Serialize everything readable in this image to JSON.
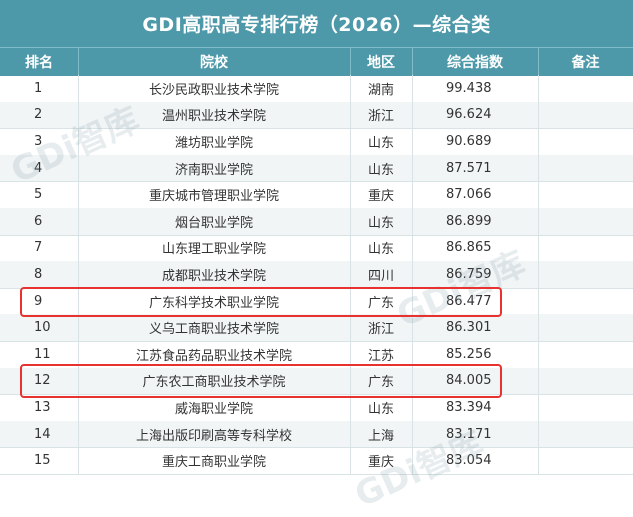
{
  "title": "GDI高职高专排行榜（2026）—综合类",
  "columns": {
    "rank": "排名",
    "school": "院校",
    "region": "地区",
    "score": "综合指数",
    "note": "备注"
  },
  "rows": [
    {
      "rank": "1",
      "school": "长沙民政职业技术学院",
      "region": "湖南",
      "score": "99.438"
    },
    {
      "rank": "2",
      "school": "温州职业技术学院",
      "region": "浙江",
      "score": "96.624"
    },
    {
      "rank": "3",
      "school": "潍坊职业学院",
      "region": "山东",
      "score": "90.689"
    },
    {
      "rank": "4",
      "school": "济南职业学院",
      "region": "山东",
      "score": "87.571"
    },
    {
      "rank": "5",
      "school": "重庆城市管理职业学院",
      "region": "重庆",
      "score": "87.066"
    },
    {
      "rank": "6",
      "school": "烟台职业学院",
      "region": "山东",
      "score": "86.899"
    },
    {
      "rank": "7",
      "school": "山东理工职业学院",
      "region": "山东",
      "score": "86.865"
    },
    {
      "rank": "8",
      "school": "成都职业技术学院",
      "region": "四川",
      "score": "86.759"
    },
    {
      "rank": "9",
      "school": "广东科学技术职业学院",
      "region": "广东",
      "score": "86.477"
    },
    {
      "rank": "10",
      "school": "义乌工商职业技术学院",
      "region": "浙江",
      "score": "86.301"
    },
    {
      "rank": "11",
      "school": "江苏食品药品职业技术学院",
      "region": "江苏",
      "score": "85.256"
    },
    {
      "rank": "12",
      "school": "广东农工商职业技术学院",
      "region": "广东",
      "score": "84.005"
    },
    {
      "rank": "13",
      "school": "威海职业学院",
      "region": "山东",
      "score": "83.394"
    },
    {
      "rank": "14",
      "school": "上海出版印刷高等专科学校",
      "region": "上海",
      "score": "83.171"
    },
    {
      "rank": "15",
      "school": "重庆工商职业学院",
      "region": "重庆",
      "score": "83.054"
    }
  ],
  "watermark": "GDi智库",
  "highlight_color": "#e8322f",
  "header_color": "#4e99a9"
}
